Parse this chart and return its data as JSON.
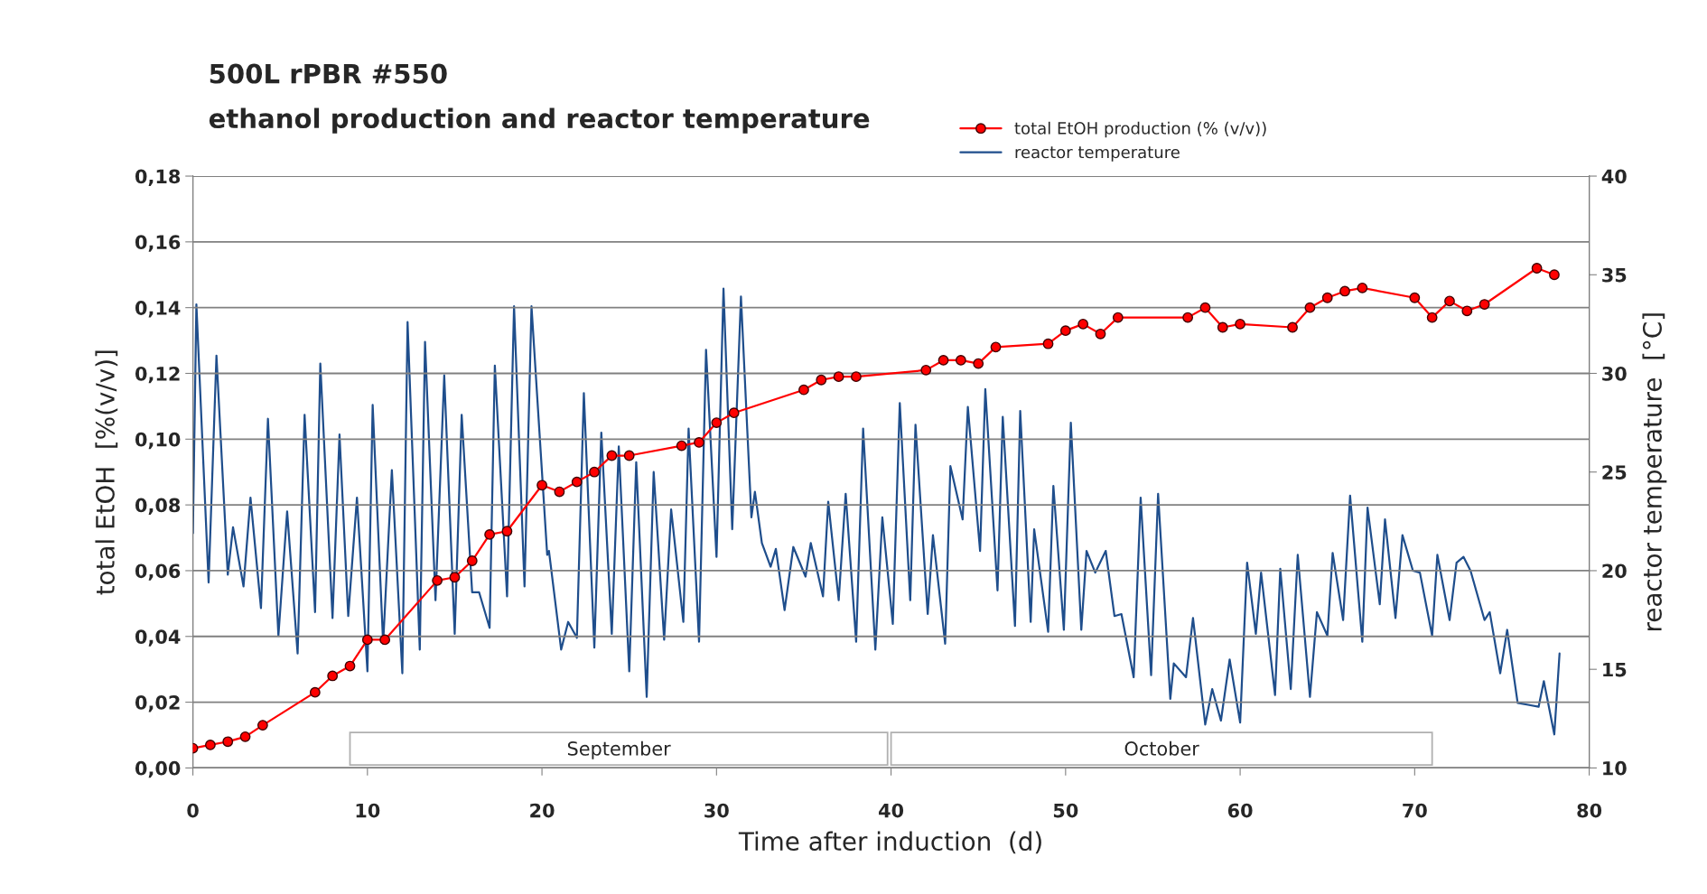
{
  "chart_data": {
    "type": "line",
    "title": "500L rPBR #550",
    "subtitle": "ethanol production and reactor temperature",
    "xlabel": "Time after induction  (d)",
    "ylabel": "total EtOH  [%(v/v)]",
    "y2label": "reactor temperature  [°C]",
    "xlim": [
      0,
      80
    ],
    "xticks": [
      0,
      10,
      20,
      30,
      40,
      50,
      60,
      70,
      80
    ],
    "ylim": [
      0,
      0.18
    ],
    "yticks": [
      {
        "value": 0,
        "label": "0,00"
      },
      {
        "value": 0.02,
        "label": "0,02"
      },
      {
        "value": 0.04,
        "label": "0,04"
      },
      {
        "value": 0.06,
        "label": "0,06"
      },
      {
        "value": 0.08,
        "label": "0,08"
      },
      {
        "value": 0.1,
        "label": "0,10"
      },
      {
        "value": 0.12,
        "label": "0,12"
      },
      {
        "value": 0.14,
        "label": "0,14"
      },
      {
        "value": 0.16,
        "label": "0,16"
      },
      {
        "value": 0.18,
        "label": "0,18"
      }
    ],
    "y2lim": [
      10,
      40
    ],
    "y2ticks": [
      10,
      15,
      20,
      25,
      30,
      35,
      40
    ],
    "grid": "y",
    "legend": "top right",
    "bands": [
      {
        "axis": "x",
        "from": 9,
        "to": 39.8,
        "label": "September",
        "color": "#ffffff"
      },
      {
        "axis": "x",
        "from": 40,
        "to": 71,
        "label": "October",
        "color": "#ffffff"
      }
    ],
    "series": [
      {
        "name": "reactor temperature",
        "color": "#1f4e8c",
        "axis": "y2",
        "marker": "none",
        "x": [
          0,
          0.2,
          0.9,
          1.35,
          2.0,
          2.3,
          2.9,
          3.3,
          3.9,
          4.3,
          4.9,
          5.4,
          6.0,
          6.4,
          7.0,
          7.3,
          8.0,
          8.4,
          8.9,
          9.4,
          10.0,
          10.3,
          10.9,
          11.4,
          12.0,
          12.3,
          13.0,
          13.3,
          13.9,
          14.4,
          15.0,
          15.4,
          16.0,
          16.4,
          17.0,
          17.3,
          18.0,
          18.4,
          19.0,
          19.4,
          20.3,
          20.4,
          21.1,
          21.5,
          22.0,
          22.4,
          23.0,
          23.4,
          24.0,
          24.4,
          25.0,
          25.4,
          26.0,
          26.4,
          27.0,
          27.4,
          28.1,
          28.4,
          29.0,
          29.4,
          30.0,
          30.4,
          30.9,
          31.4,
          32.0,
          32.2,
          32.6,
          33.1,
          33.4,
          33.9,
          34.4,
          35.1,
          35.4,
          36.1,
          36.4,
          37.0,
          37.4,
          38.0,
          38.4,
          39.1,
          39.5,
          40.1,
          40.5,
          41.1,
          41.4,
          42.1,
          42.4,
          43.1,
          43.4,
          44.1,
          44.4,
          45.1,
          45.4,
          46.1,
          46.4,
          47.1,
          47.4,
          48.0,
          48.2,
          49.0,
          49.3,
          49.9,
          50.3,
          50.9,
          51.2,
          51.7,
          52.3,
          52.8,
          53.2,
          53.9,
          54.3,
          54.9,
          55.3,
          56.0,
          56.2,
          56.9,
          57.3,
          58.0,
          58.4,
          58.9,
          59.4,
          60.0,
          60.4,
          60.9,
          61.2,
          62.0,
          62.3,
          62.9,
          63.3,
          64.0,
          64.4,
          65.0,
          65.3,
          65.9,
          66.3,
          67.0,
          67.3,
          68.0,
          68.3,
          68.9,
          69.3,
          69.9,
          70.3,
          71.0,
          71.3,
          72.0,
          72.4,
          72.8,
          73.2,
          74.0,
          74.3,
          74.9,
          75.3,
          75.9,
          76.5,
          77.1,
          77.4,
          78.0,
          78.3
        ],
        "values": [
          21.9,
          33.5,
          19.4,
          30.9,
          19.8,
          22.2,
          19.2,
          23.7,
          18.1,
          27.7,
          16.7,
          23.0,
          15.8,
          27.9,
          17.9,
          30.5,
          17.6,
          26.9,
          17.7,
          23.7,
          14.9,
          28.4,
          16.3,
          25.1,
          14.8,
          32.6,
          16.0,
          31.6,
          18.5,
          29.9,
          16.8,
          27.9,
          18.9,
          18.9,
          17.1,
          30.4,
          18.7,
          33.4,
          19.2,
          33.4,
          20.8,
          21.0,
          16.0,
          17.4,
          16.6,
          29.0,
          16.1,
          27.0,
          16.8,
          26.3,
          14.9,
          25.5,
          13.6,
          25.0,
          16.5,
          23.1,
          17.4,
          27.2,
          16.4,
          31.2,
          20.7,
          34.3,
          22.1,
          33.9,
          22.7,
          24.0,
          21.4,
          20.2,
          21.1,
          18.0,
          21.2,
          19.7,
          21.4,
          18.7,
          23.5,
          18.5,
          23.9,
          16.4,
          27.2,
          16.0,
          22.7,
          17.3,
          28.5,
          18.5,
          27.4,
          17.8,
          21.8,
          16.3,
          25.3,
          22.6,
          28.3,
          21.0,
          29.2,
          19.0,
          27.8,
          17.2,
          28.1,
          17.4,
          22.1,
          16.9,
          24.3,
          17.0,
          27.5,
          17.0,
          21.0,
          19.9,
          21.0,
          17.7,
          17.8,
          14.6,
          23.7,
          14.7,
          23.9,
          13.5,
          15.3,
          14.6,
          17.6,
          12.2,
          14.0,
          12.4,
          15.5,
          12.3,
          20.4,
          16.8,
          19.9,
          13.7,
          20.1,
          14.0,
          20.8,
          13.6,
          17.9,
          16.7,
          20.9,
          17.5,
          23.8,
          16.4,
          23.2,
          18.3,
          22.6,
          17.6,
          21.8,
          20.0,
          19.9,
          16.7,
          20.8,
          17.5,
          20.4,
          20.7,
          20.0,
          17.5,
          17.9,
          14.8,
          17.0,
          13.3,
          13.2,
          13.1,
          14.4,
          11.7,
          15.8
        ]
      },
      {
        "name": "total EtOH production (% (v/v))",
        "color": "#ff0000",
        "marker": "circle",
        "x": [
          0,
          1,
          2,
          3,
          4,
          7,
          8,
          9,
          10,
          11,
          14,
          15,
          16,
          17,
          18,
          20,
          21,
          22,
          23,
          24,
          25,
          28,
          29,
          30,
          31,
          35,
          36,
          37,
          38,
          42,
          43,
          44,
          45,
          46,
          49,
          50,
          51,
          52,
          53,
          57,
          58,
          59,
          60,
          63,
          64,
          65,
          66,
          67,
          70,
          71,
          72,
          73,
          74,
          77,
          78
        ],
        "values": [
          0.006,
          0.007,
          0.008,
          0.0095,
          0.013,
          0.023,
          0.028,
          0.031,
          0.039,
          0.039,
          0.057,
          0.058,
          0.063,
          0.071,
          0.072,
          0.086,
          0.084,
          0.087,
          0.09,
          0.095,
          0.095,
          0.098,
          0.099,
          0.105,
          0.108,
          0.115,
          0.118,
          0.119,
          0.119,
          0.121,
          0.124,
          0.124,
          0.123,
          0.128,
          0.129,
          0.133,
          0.135,
          0.132,
          0.137,
          0.137,
          0.14,
          0.134,
          0.135,
          0.134,
          0.14,
          0.143,
          0.145,
          0.146,
          0.143,
          0.137,
          0.142,
          0.139,
          0.141,
          0.152,
          0.15
        ]
      }
    ]
  }
}
